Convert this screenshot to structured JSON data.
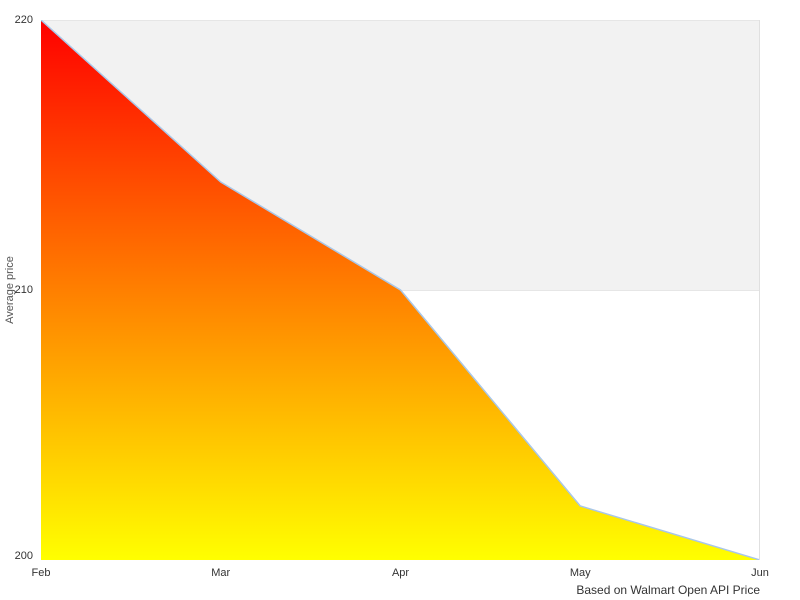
{
  "chart_data": {
    "type": "area",
    "categories": [
      "Feb",
      "Mar",
      "Apr",
      "May",
      "Jun"
    ],
    "values": [
      220,
      214,
      210,
      202,
      200
    ],
    "title": "",
    "xlabel": "",
    "ylabel": "Average price",
    "ylim": [
      200,
      220
    ],
    "yticks": [
      200,
      210,
      220
    ],
    "caption": "Based on Walmart Open API Price",
    "legend_position": "none",
    "grid": true,
    "alternate_band": {
      "from": 210,
      "to": 220,
      "color": "#f2f2f2"
    },
    "colors": {
      "line": "#a9c7e8",
      "fill_gradient_top": "#ff0000",
      "fill_gradient_bottom": "#ffff00",
      "gridline": "#e6e6e6",
      "plot_border": "#e0e0e0",
      "tick_label": "#333333",
      "axis_title": "#555555",
      "caption_text": "#333333",
      "background": "#ffffff"
    }
  }
}
